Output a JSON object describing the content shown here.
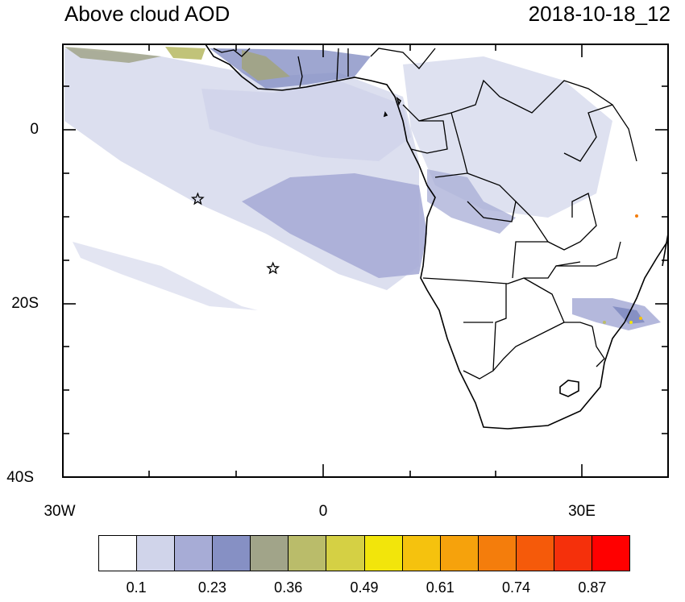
{
  "map": {
    "title": "Above cloud AOD",
    "datetime": "2018-10-18_12",
    "lat_labels": [
      "0",
      "20S",
      "40S"
    ],
    "lon_labels": [
      "30W",
      "0",
      "30E"
    ],
    "region": {
      "lon_range": [
        -30,
        40
      ],
      "lat_range": [
        -40,
        10
      ]
    },
    "markers": [
      {
        "name": "star-marker",
        "lon": -14.4,
        "lat": -7.9
      },
      {
        "name": "star-marker",
        "lon": -5.7,
        "lat": -15.9
      }
    ],
    "features": [
      "African coastline",
      "country borders",
      "above-cloud AOD shading"
    ]
  },
  "colorbar": {
    "labels": [
      "0.1",
      "0.23",
      "0.36",
      "0.49",
      "0.61",
      "0.74",
      "0.87"
    ],
    "colors": [
      "#ffffff",
      "#d0d4ea",
      "#a7acd6",
      "#8690c4",
      "#a1a489",
      "#babc6a",
      "#d5d044",
      "#f2e50b",
      "#f5c20e",
      "#f6a20c",
      "#f47d0c",
      "#f55a0a",
      "#f5300b",
      "#ff0000"
    ]
  }
}
